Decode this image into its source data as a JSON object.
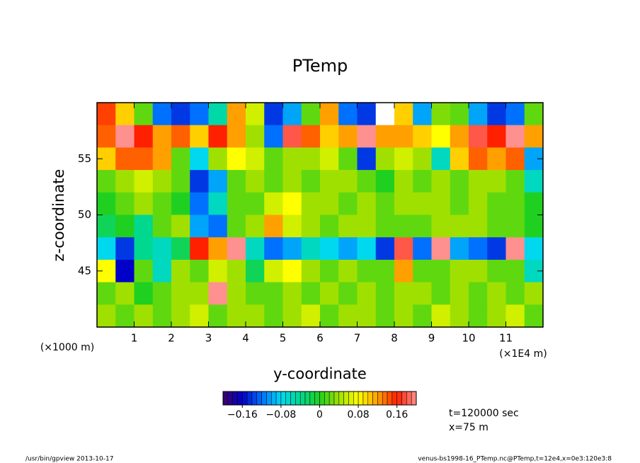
{
  "chart_data": {
    "type": "heatmap",
    "title": "PTemp",
    "xlabel": "y-coordinate",
    "ylabel": "z-coordinate",
    "xunit": "(×1E4 m)",
    "yunit": "(×1000 m)",
    "xlim": [
      0,
      12
    ],
    "xticks": [
      1,
      2,
      3,
      4,
      5,
      6,
      7,
      8,
      9,
      10,
      11
    ],
    "ylim": [
      40,
      60
    ],
    "yticks": [
      45,
      50,
      55
    ],
    "clim": [
      -0.2,
      0.2
    ],
    "contour_interval": 0.01,
    "cticks": [
      {
        "value": -0.16,
        "label": "−0.16"
      },
      {
        "value": -0.08,
        "label": "−0.08"
      },
      0,
      0.08,
      0.16
    ],
    "colormap": [
      "#40006a",
      "#0000c8",
      "#0070ff",
      "#00d8f0",
      "#00d890",
      "#20d020",
      "#a0e000",
      "#ffff00",
      "#ffa000",
      "#ff2000",
      "#ff9090"
    ],
    "over_color": "#ffffff",
    "z": [
      [
        0.15,
        0.1,
        0.02,
        -0.12,
        -0.14,
        -0.12,
        -0.05,
        0.12,
        0.06,
        -0.14,
        -0.1,
        0.02,
        0.12,
        -0.12,
        -0.14,
        0.22,
        0.1,
        -0.1,
        0.03,
        0.02,
        -0.1,
        -0.14,
        -0.12,
        0.02
      ],
      [
        0.14,
        0.2,
        0.16,
        0.12,
        0.14,
        0.1,
        0.16,
        0.12,
        0.04,
        -0.12,
        0.18,
        0.14,
        0.1,
        0.12,
        0.2,
        0.12,
        0.12,
        0.1,
        0.08,
        0.12,
        0.18,
        0.16,
        0.2,
        0.12
      ],
      [
        0.1,
        0.14,
        0.14,
        0.12,
        0.02,
        -0.08,
        0.04,
        0.08,
        0.06,
        0.02,
        0.04,
        0.04,
        0.06,
        0.02,
        -0.14,
        0.04,
        0.06,
        0.04,
        -0.06,
        0.1,
        0.14,
        0.12,
        0.14,
        -0.1
      ],
      [
        0.02,
        0.04,
        0.06,
        0.04,
        0.02,
        -0.14,
        -0.1,
        0.02,
        0.04,
        0.02,
        0.04,
        0.02,
        0.04,
        0.04,
        0.02,
        0,
        0.04,
        0.02,
        0.04,
        0.02,
        0.04,
        0.04,
        0.02,
        -0.06
      ],
      [
        0,
        0.02,
        0.04,
        0.02,
        0,
        -0.12,
        -0.06,
        0.02,
        0.02,
        0.06,
        0.08,
        0.04,
        0.04,
        0.02,
        0.04,
        0.02,
        0.04,
        0.04,
        0.04,
        0.02,
        0.04,
        0.02,
        0.02,
        0
      ],
      [
        -0.02,
        0,
        -0.04,
        0.02,
        0.04,
        -0.1,
        -0.12,
        0.02,
        0.04,
        0.12,
        0.06,
        0.04,
        0.02,
        0.04,
        0.04,
        0.02,
        0.02,
        0.02,
        0.04,
        0.04,
        0.04,
        0.02,
        0.02,
        0
      ],
      [
        -0.08,
        -0.14,
        -0.04,
        -0.06,
        -0.02,
        0.16,
        0.12,
        0.2,
        -0.06,
        -0.12,
        -0.1,
        -0.06,
        -0.08,
        -0.1,
        -0.08,
        -0.14,
        0.18,
        -0.12,
        0.2,
        -0.1,
        -0.12,
        -0.14,
        0.2,
        -0.08
      ],
      [
        0.08,
        -0.16,
        0.02,
        -0.06,
        0.04,
        0.02,
        0.06,
        0.04,
        -0.02,
        0.06,
        0.08,
        0.04,
        0.02,
        0.04,
        0.02,
        0.02,
        0.12,
        0.02,
        0.02,
        0.04,
        0.04,
        0.02,
        0.02,
        -0.06
      ],
      [
        0.02,
        0.04,
        0,
        0.02,
        0.04,
        0.04,
        0.2,
        0.04,
        0.02,
        0.02,
        0.04,
        0.02,
        0.04,
        0.02,
        0.04,
        0.02,
        0.04,
        0.04,
        0.02,
        0.04,
        0.02,
        0.04,
        0.02,
        0.04
      ],
      [
        0.04,
        0.02,
        0.04,
        0.02,
        0.04,
        0.06,
        0.02,
        0.04,
        0.04,
        0.02,
        0.04,
        0.06,
        0.02,
        0.04,
        0.04,
        0.02,
        0.04,
        0.02,
        0.06,
        0.04,
        0.02,
        0.04,
        0.06,
        0.02
      ]
    ],
    "annotations": [
      "t=120000 sec",
      "x=75 m"
    ],
    "footer_left": "/usr/bin/gpview  2013-10-17",
    "footer_right": "venus-bs1998-16_PTemp.nc@PTemp,t=12e4,x=0e3:120e3:8"
  }
}
